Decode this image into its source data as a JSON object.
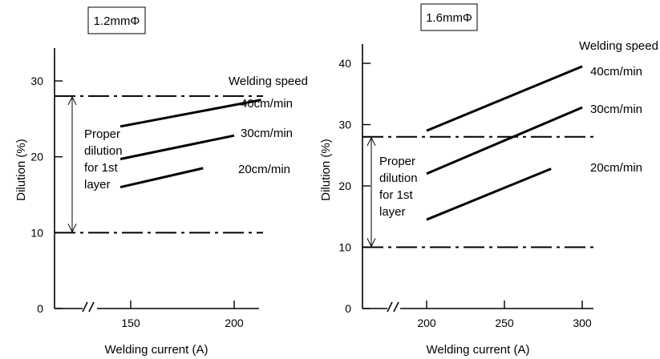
{
  "chart_data": [
    {
      "type": "line",
      "panel_label": "1.2mmΦ",
      "xlabel": "Welding current (A)",
      "ylabel": "Dilution (%)",
      "x_ticks": [
        150,
        200
      ],
      "y_ticks": [
        0,
        10,
        20,
        30
      ],
      "xlim": [
        100,
        220
      ],
      "ylim": [
        0,
        34
      ],
      "legend_title": "Welding speed",
      "reference_lines": [
        10,
        28
      ],
      "band_label": "Proper dilution for 1st layer",
      "band_label_lines": [
        "Proper",
        "dilution",
        "for 1st",
        "layer"
      ],
      "series": [
        {
          "name": "40cm/min",
          "x": [
            145,
            213
          ],
          "y": [
            24,
            27.5
          ]
        },
        {
          "name": "30cm/min",
          "x": [
            145,
            200
          ],
          "y": [
            19.7,
            22.8
          ]
        },
        {
          "name": "20cm/min",
          "x": [
            145,
            185
          ],
          "y": [
            16,
            18.5
          ]
        }
      ]
    },
    {
      "type": "line",
      "panel_label": "1.6mmΦ",
      "xlabel": "Welding current (A)",
      "ylabel": "Dilution (%)",
      "x_ticks": [
        200,
        250,
        300
      ],
      "y_ticks": [
        0,
        10,
        20,
        30,
        40
      ],
      "xlim": [
        160,
        315
      ],
      "ylim": [
        0,
        44
      ],
      "legend_title": "Welding speed",
      "reference_lines": [
        10,
        28
      ],
      "band_label": "Proper dilution for 1st layer",
      "band_label_lines": [
        "Proper",
        "dilution",
        "for 1st",
        "layer"
      ],
      "series": [
        {
          "name": "40cm/min",
          "x": [
            200,
            300
          ],
          "y": [
            29,
            39.5
          ]
        },
        {
          "name": "30cm/min",
          "x": [
            200,
            300
          ],
          "y": [
            22,
            32.8
          ]
        },
        {
          "name": "20cm/min",
          "x": [
            200,
            280
          ],
          "y": [
            14.5,
            22.8
          ]
        }
      ]
    }
  ]
}
